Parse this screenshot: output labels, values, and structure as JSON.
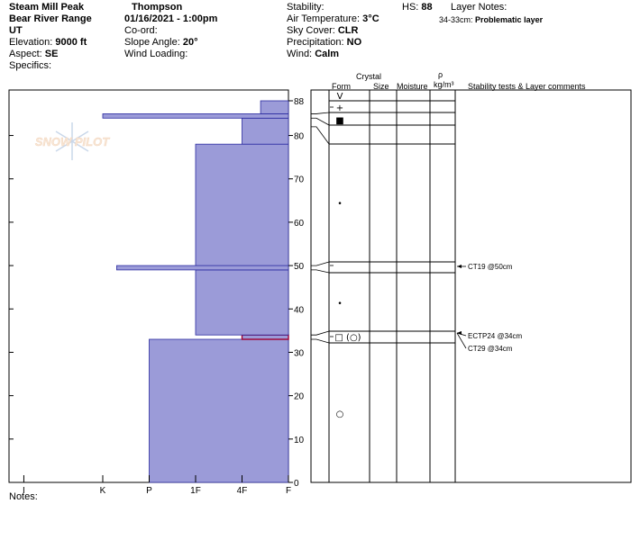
{
  "header": {
    "location": "Steam Mill Peak",
    "observer": "Thompson",
    "range": "Bear River Range",
    "datetime": "01/16/2021 - 1:00pm",
    "state": "UT",
    "elevation_label": "Elevation:",
    "elevation": "9000 ft",
    "coord_label": "Co-ord:",
    "aspect_label": "Aspect:",
    "aspect": "SE",
    "slope_label": "Slope Angle:",
    "slope": "20°",
    "specifics_label": "Specifics:",
    "wind_loading_label": "Wind Loading:",
    "stability_label": "Stability:",
    "hs_label": "HS:",
    "hs": "88",
    "air_temp_label": "Air Temperature:",
    "air_temp": "3°C",
    "sky_label": "Sky Cover:",
    "sky": "CLR",
    "precip_label": "Precipitation:",
    "precip": "NO",
    "wind_label": "Wind:",
    "wind": "Calm",
    "layer_notes_label": "Layer Notes:",
    "layer_note_depth": "34-33cm:",
    "layer_note_text": "Problematic layer",
    "notes_label": "Notes:"
  },
  "table_headers": {
    "form": "Form",
    "crystal": "Crystal",
    "size": "Size",
    "moisture": "Moisture",
    "rho": "ρ",
    "density_unit": "kg/m³",
    "comments": "Stability tests & Layer comments"
  },
  "watermark": "SNOW PILOT",
  "chart_data": {
    "type": "bar",
    "orientation": "horizontal",
    "description_axis_y": "height (cm)",
    "ylim": [
      0,
      88
    ],
    "yticks": [
      0,
      10,
      20,
      30,
      40,
      50,
      60,
      70,
      80,
      88
    ],
    "hardness_categories": [
      "I",
      "K",
      "P",
      "1F",
      "4F",
      "F"
    ],
    "hardness_ticks": [
      {
        "label": "I",
        "value": 5.7
      },
      {
        "label": "K",
        "value": 4
      },
      {
        "label": "P",
        "value": 3
      },
      {
        "label": "1F",
        "value": 2
      },
      {
        "label": "4F",
        "value": 1
      },
      {
        "label": "F",
        "value": 0
      }
    ],
    "hardness_max": 6,
    "layers": [
      {
        "bottom": 0,
        "top": 33,
        "hardness_value": 3
      },
      {
        "bottom": 33,
        "top": 34,
        "hardness_value": 1,
        "highlight": true
      },
      {
        "bottom": 34,
        "top": 49,
        "hardness_value": 2
      },
      {
        "bottom": 49,
        "top": 50,
        "hardness_value": 3.7
      },
      {
        "bottom": 50,
        "top": 78,
        "hardness_value": 2
      },
      {
        "bottom": 78,
        "top": 84,
        "hardness_value": 1
      },
      {
        "bottom": 84,
        "top": 85,
        "hardness_value": 4
      },
      {
        "bottom": 85,
        "top": 88,
        "hardness_value": 0.6
      }
    ],
    "crystal_layers": [
      {
        "top": 88,
        "bottom": 86,
        "form": "V"
      },
      {
        "top": 86,
        "bottom": 84,
        "form": "+"
      },
      {
        "top": 84,
        "bottom": 82,
        "form": "■"
      },
      {
        "top": 82,
        "bottom": 78,
        "form": ""
      },
      {
        "top": 78,
        "bottom": 51,
        "form": "•"
      },
      {
        "top": 51,
        "bottom": 48,
        "form": ""
      },
      {
        "top": 48,
        "bottom": 35,
        "form": "•"
      },
      {
        "top": 35,
        "bottom": 32,
        "form": "□ (○)"
      },
      {
        "top": 32,
        "bottom": 0,
        "form": "○"
      }
    ],
    "stability_tests": [
      {
        "depth": 50,
        "label": "CT19 @50cm"
      },
      {
        "depth": 34,
        "label": "ECTP24 @34cm"
      },
      {
        "depth": 34,
        "label": "CT29 @34cm"
      }
    ],
    "colors": {
      "layer_fill": "#9b9bd8",
      "layer_stroke": "#2a2aa0",
      "highlight": "#a00030"
    }
  }
}
